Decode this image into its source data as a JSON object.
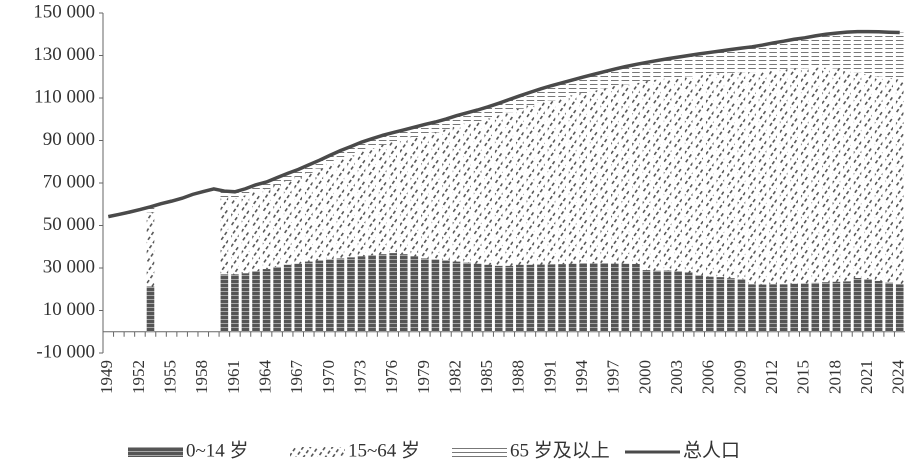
{
  "chart_data": {
    "type": "bar",
    "stacked": true,
    "categories": [
      "1949",
      null,
      null,
      "1952",
      null,
      null,
      "1955",
      null,
      null,
      "1958",
      null,
      null,
      "1961",
      null,
      null,
      "1964",
      null,
      null,
      "1967",
      null,
      null,
      "1970",
      null,
      null,
      "1973",
      null,
      null,
      "1976",
      null,
      null,
      "1979",
      null,
      null,
      "1982",
      null,
      null,
      "1985",
      null,
      null,
      "1988",
      null,
      null,
      "1991",
      null,
      null,
      "1994",
      null,
      null,
      "1997",
      null,
      null,
      "2000",
      null,
      null,
      "2003",
      null,
      null,
      "2006",
      null,
      null,
      "2009",
      null,
      null,
      "2012",
      null,
      null,
      "2015",
      null,
      null,
      "2018",
      null,
      null,
      "2021",
      null,
      null,
      "2024"
    ],
    "ylim": [
      -10000,
      150000
    ],
    "yticks": [
      {
        "value": -10000,
        "label": "-10 000"
      },
      {
        "value": 10000,
        "label": "10 000"
      },
      {
        "value": 30000,
        "label": "30 000"
      },
      {
        "value": 50000,
        "label": "50 000"
      },
      {
        "value": 70000,
        "label": "70 000"
      },
      {
        "value": 90000,
        "label": "90 000"
      },
      {
        "value": 110000,
        "label": "110 000"
      },
      {
        "value": 130000,
        "label": "130 000"
      },
      {
        "value": 150000,
        "label": "150 000"
      }
    ],
    "series": [
      {
        "name": "0~14 岁",
        "color": "#555555",
        "values": [
          null,
          null,
          null,
          null,
          21300,
          null,
          null,
          null,
          null,
          null,
          null,
          27000,
          27000,
          27500,
          28500,
          29500,
          30500,
          31500,
          32000,
          33000,
          33500,
          34000,
          34500,
          35000,
          35500,
          36000,
          36500,
          37000,
          36500,
          35500,
          34500,
          34000,
          33500,
          33000,
          32500,
          32000,
          31500,
          31000,
          31000,
          31500,
          31500,
          31600,
          31700,
          31800,
          32000,
          32300,
          32200,
          32300,
          32100,
          32000,
          31900,
          29000,
          28700,
          28800,
          28500,
          27900,
          26500,
          25900,
          25700,
          25200,
          24700,
          22300,
          22200,
          22300,
          22300,
          22600,
          22700,
          23000,
          23300,
          23500,
          23700,
          25300,
          24700,
          23900,
          23100,
          22300
        ]
      },
      {
        "name": "15~64 岁",
        "color": "#555555",
        "values": [
          null,
          null,
          null,
          null,
          34896,
          null,
          null,
          null,
          null,
          null,
          null,
          36207,
          35759,
          36596,
          37372,
          37599,
          38538,
          39442,
          40668,
          41734,
          43271,
          44992,
          46629,
          47977,
          49411,
          50459,
          51420,
          52117,
          53774,
          55959,
          58142,
          59755,
          61572,
          63663,
          65408,
          67057,
          68851,
          70807,
          72332,
          73400,
          74919,
          76365,
          77185,
          78153,
          79228,
          79928,
          81411,
          82256,
          83441,
          84402,
          85207,
          88922,
          89865,
          90276,
          91035,
          92231,
          94201,
          95129,
          95793,
          96646,
          97443,
          99897,
          100428,
          100908,
          101265,
          101291,
          101240,
          101229,
          100880,
          100383,
          99705,
          96848,
          96504,
          96297,
          96194,
          96505
        ]
      },
      {
        "name": "65 岁及以上",
        "color": "#777777",
        "values": [
          null,
          null,
          null,
          null,
          2600,
          null,
          null,
          null,
          null,
          null,
          null,
          3000,
          3100,
          3200,
          3300,
          3400,
          3500,
          3600,
          3700,
          3800,
          3900,
          4000,
          4100,
          4200,
          4300,
          4400,
          4500,
          4600,
          4700,
          4800,
          4900,
          4950,
          5000,
          4991,
          5100,
          5300,
          5500,
          5700,
          5968,
          6126,
          6285,
          6368,
          6938,
          7218,
          7289,
          7622,
          7510,
          7833,
          8085,
          8359,
          8679,
          8821,
          9062,
          9377,
          9692,
          9857,
          10055,
          10419,
          10636,
          10956,
          11307,
          11894,
          12288,
          12714,
          13161,
          13755,
          14386,
          15003,
          15831,
          16658,
          17603,
          19064,
          20056,
          20978,
          21676,
          22023
        ]
      },
      {
        "name": "总人口",
        "type": "line",
        "color": "#4a4a4a",
        "values": [
          54167,
          55196,
          56300,
          57482,
          58796,
          60266,
          61465,
          62828,
          64653,
          65994,
          67207,
          66207,
          65859,
          67296,
          69172,
          70499,
          72538,
          74542,
          76368,
          78534,
          80671,
          82992,
          85229,
          87177,
          89211,
          90859,
          92420,
          93717,
          94974,
          96259,
          97542,
          98705,
          100072,
          101654,
          103008,
          104357,
          105851,
          107507,
          109300,
          111026,
          112704,
          114333,
          115823,
          117171,
          118517,
          119850,
          121121,
          122389,
          123626,
          124761,
          125786,
          126743,
          127627,
          128453,
          129227,
          129988,
          130756,
          131448,
          132129,
          132802,
          133450,
          134091,
          134916,
          135922,
          136726,
          137646,
          138326,
          139232,
          140011,
          140541,
          141008,
          141212,
          141260,
          141175,
          140967,
          140828
        ]
      }
    ]
  }
}
